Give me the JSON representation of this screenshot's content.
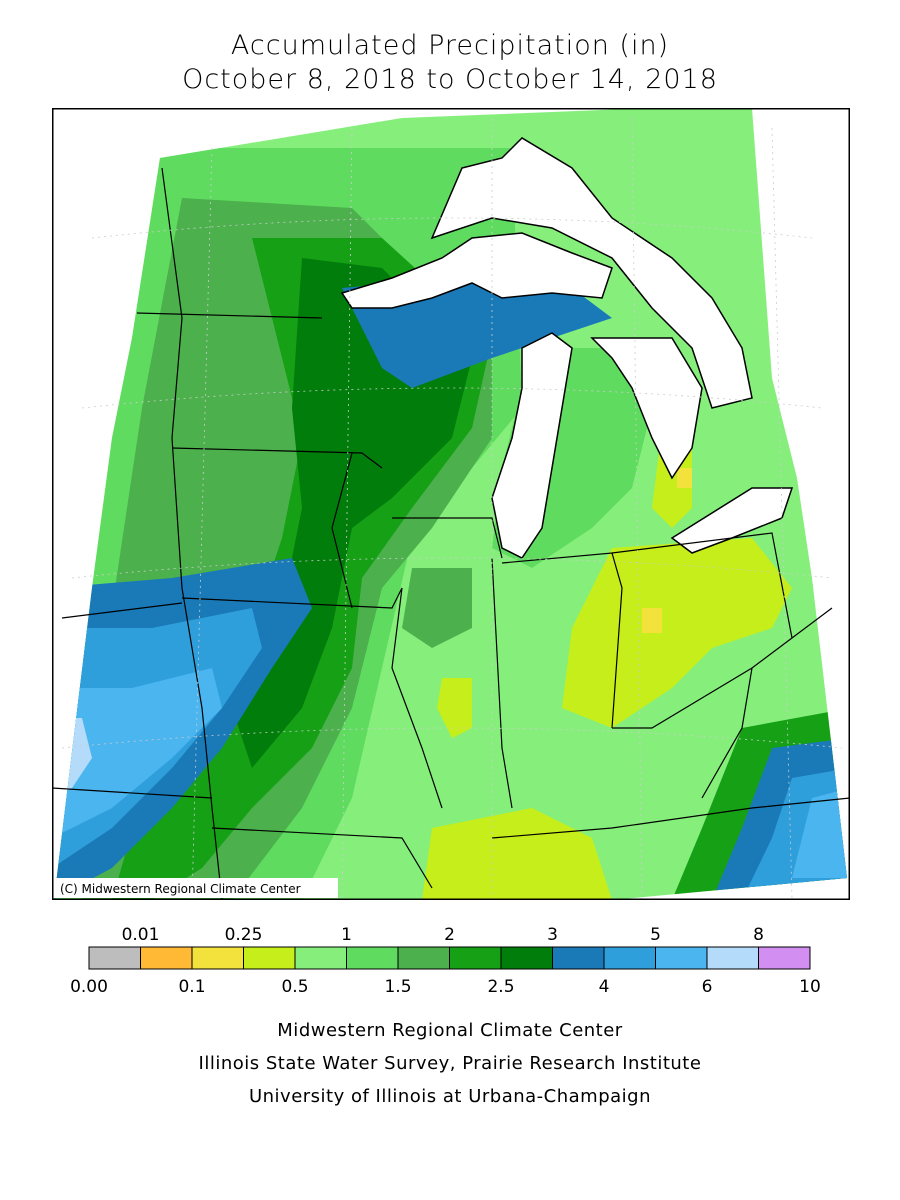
{
  "title": {
    "line1": "Accumulated Precipitation (in)",
    "line2": "October 8, 2018 to October 14, 2018"
  },
  "map": {
    "copyright": "(C) Midwestern Regional Climate Center",
    "water_color": "#ffffff",
    "border_color": "#000000"
  },
  "legend": {
    "bins": [
      {
        "color": "#bdbdbd"
      },
      {
        "color": "#ffb935"
      },
      {
        "color": "#f4e23c"
      },
      {
        "color": "#c6ee1a"
      },
      {
        "color": "#86ef7c"
      },
      {
        "color": "#5fdc5f"
      },
      {
        "color": "#4cb04c"
      },
      {
        "color": "#16a016"
      },
      {
        "color": "#007d0a"
      },
      {
        "color": "#1a7ab8"
      },
      {
        "color": "#2f9fdc"
      },
      {
        "color": "#4ab5ef"
      },
      {
        "color": "#b4dcfa"
      },
      {
        "color": "#d28ef0"
      }
    ],
    "top_labels": [
      {
        "text": "0.01",
        "at": 1
      },
      {
        "text": "0.25",
        "at": 3
      },
      {
        "text": "1",
        "at": 5
      },
      {
        "text": "2",
        "at": 7
      },
      {
        "text": "3",
        "at": 9
      },
      {
        "text": "5",
        "at": 11
      },
      {
        "text": "8",
        "at": 13
      }
    ],
    "bottom_labels": [
      {
        "text": "0.00",
        "at": 0
      },
      {
        "text": "0.1",
        "at": 2
      },
      {
        "text": "0.5",
        "at": 4
      },
      {
        "text": "1.5",
        "at": 6
      },
      {
        "text": "2.5",
        "at": 8
      },
      {
        "text": "4",
        "at": 10
      },
      {
        "text": "6",
        "at": 12
      },
      {
        "text": "10",
        "at": 14
      }
    ]
  },
  "credits": {
    "line1": "Midwestern Regional Climate Center",
    "line2": "Illinois State Water Survey, Prairie Research Institute",
    "line3": "University of Illinois at Urbana-Champaign"
  }
}
